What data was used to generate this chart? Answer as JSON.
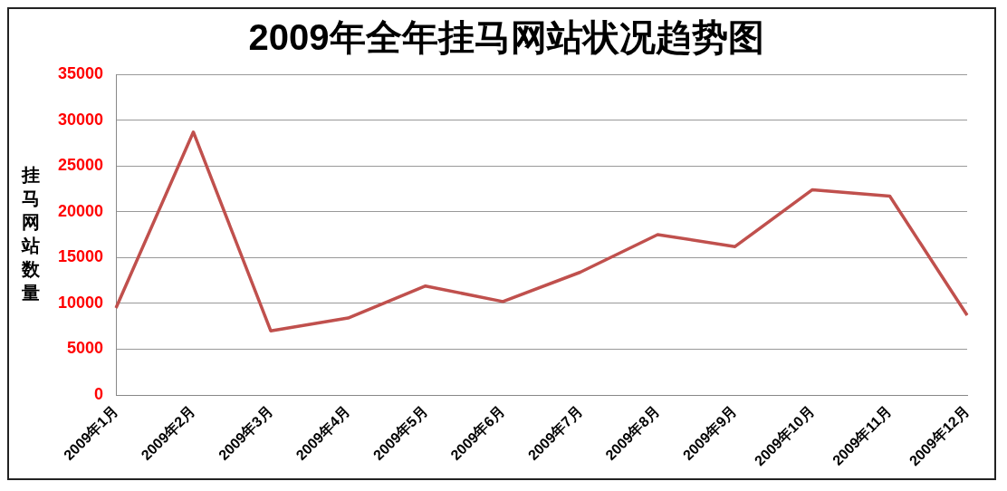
{
  "chart_data": {
    "type": "line",
    "title": "2009年全年挂马网站状况趋势图",
    "ylabel": "挂马网站数量",
    "categories": [
      "2009年1月",
      "2009年2月",
      "2009年3月",
      "2009年4月",
      "2009年5月",
      "2009年6月",
      "2009年7月",
      "2009年8月",
      "2009年9月",
      "2009年10月",
      "2009年11月",
      "2009年12月"
    ],
    "series": [
      {
        "color": "#c0504d",
        "values": [
          9500,
          28700,
          7000,
          8400,
          11900,
          10200,
          13400,
          17500,
          16200,
          22400,
          21700,
          8700
        ]
      }
    ],
    "ylim": [
      0,
      35000
    ],
    "yticks": [
      0,
      5000,
      10000,
      15000,
      20000,
      25000,
      30000,
      35000
    ],
    "grid": "y",
    "legend": false,
    "marker": "none",
    "line_style": "solid"
  }
}
